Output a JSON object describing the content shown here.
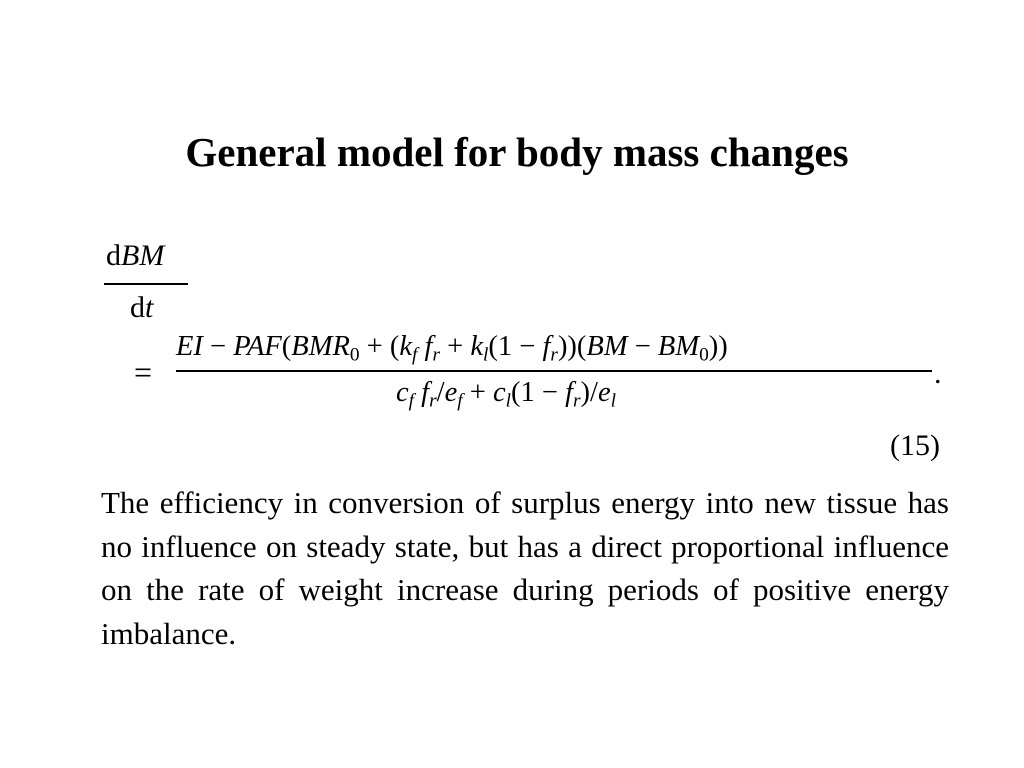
{
  "slide": {
    "title": "General model for body mass changes",
    "equation_number": "(15)",
    "body_text": "The efficiency in conversion of surplus energy into new tissue has no influence on steady state, but has a direct proportional influence on the rate of weight increase during periods of positive energy imbalance."
  }
}
